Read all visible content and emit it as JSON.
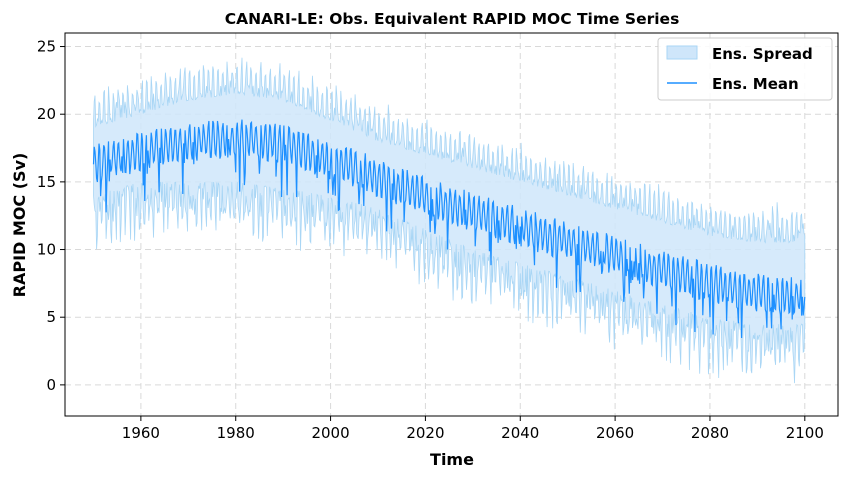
{
  "chart_data": {
    "type": "line",
    "title": "CANARI-LE: Obs. Equivalent RAPID MOC Time Series",
    "xlabel": "Time",
    "ylabel": "RAPID MOC (Sv)",
    "xlim": [
      1944,
      2107
    ],
    "ylim": [
      -2.3,
      26
    ],
    "x_ticks": [
      1960,
      1980,
      2000,
      2020,
      2040,
      2060,
      2080,
      2100
    ],
    "y_ticks": [
      0,
      5,
      10,
      15,
      20,
      25
    ],
    "grid": true,
    "legend_position": "top-right",
    "colors": {
      "mean": "#1e90ff",
      "spread": "#a9d6f5"
    },
    "series": [
      {
        "name": "Ens. Spread",
        "kind": "band",
        "x": [
          1950,
          1960,
          1970,
          1980,
          1990,
          2000,
          2010,
          2020,
          2030,
          2040,
          2050,
          2060,
          2070,
          2080,
          2090,
          2100
        ],
        "low": [
          12.5,
          13.5,
          13.5,
          13.5,
          13,
          12.5,
          11.5,
          10,
          8.5,
          7.5,
          6.5,
          5.5,
          4.5,
          3.5,
          3,
          3
        ],
        "high": [
          20.5,
          21.5,
          22.5,
          23,
          22.5,
          21,
          19.5,
          18.5,
          17.5,
          16.5,
          15.5,
          14.5,
          13.5,
          12.5,
          12,
          12
        ]
      },
      {
        "name": "Ens. Mean",
        "kind": "line",
        "x": [
          1950,
          1955,
          1960,
          1965,
          1970,
          1975,
          1980,
          1985,
          1990,
          1995,
          2000,
          2005,
          2010,
          2015,
          2020,
          2025,
          2030,
          2035,
          2040,
          2045,
          2050,
          2055,
          2060,
          2065,
          2070,
          2075,
          2080,
          2085,
          2090,
          2095,
          2100
        ],
        "y": [
          16.3,
          16.8,
          17.2,
          17.6,
          17.9,
          18.1,
          18.2,
          18.1,
          17.8,
          17.2,
          16.6,
          16.0,
          15.3,
          14.6,
          13.9,
          13.3,
          12.8,
          12.2,
          11.7,
          11.1,
          10.6,
          10.1,
          9.6,
          9.0,
          8.5,
          8.0,
          7.5,
          7.1,
          6.8,
          6.6,
          6.5
        ]
      }
    ]
  },
  "legend": {
    "spread_label": "Ens. Spread",
    "mean_label": "Ens. Mean"
  }
}
